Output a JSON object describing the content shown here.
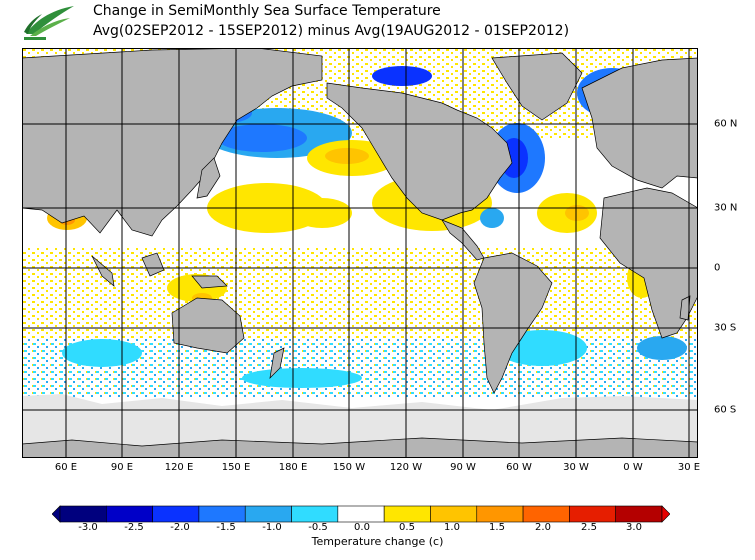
{
  "title": {
    "line1": "Change in SemiMonthly Sea Surface Temperature",
    "line2": "Avg(02SEP2012 - 15SEP2012) minus Avg(19AUG2012 - 01SEP2012)"
  },
  "map": {
    "longitude_labels": [
      "60 E",
      "90 E",
      "120 E",
      "150 E",
      "180 E",
      "150 W",
      "120 W",
      "90 W",
      "60 W",
      "30 W",
      "0 W",
      "30 E"
    ],
    "latitude_labels": [
      "60 N",
      "30 N",
      "0",
      "30 S",
      "60 S"
    ],
    "land_color": "#b4b4b4",
    "ice_color": "#e6e6e6",
    "ocean_no_change_color": "#ffffff"
  },
  "colorbar": {
    "tick_labels": [
      "-3.0",
      "-2.5",
      "-2.0",
      "-1.5",
      "-1.0",
      "-0.5",
      "0.0",
      "0.5",
      "1.0",
      "1.5",
      "2.0",
      "2.5",
      "3.0"
    ],
    "colors": [
      "#00007e",
      "#0000c8",
      "#0a32ff",
      "#1e78ff",
      "#29a8f0",
      "#30dcff",
      "#ffffff",
      "#ffe600",
      "#ffc400",
      "#ff9600",
      "#ff6400",
      "#e61e00",
      "#b40000"
    ],
    "units_label": "Temperature change  (c)"
  }
}
